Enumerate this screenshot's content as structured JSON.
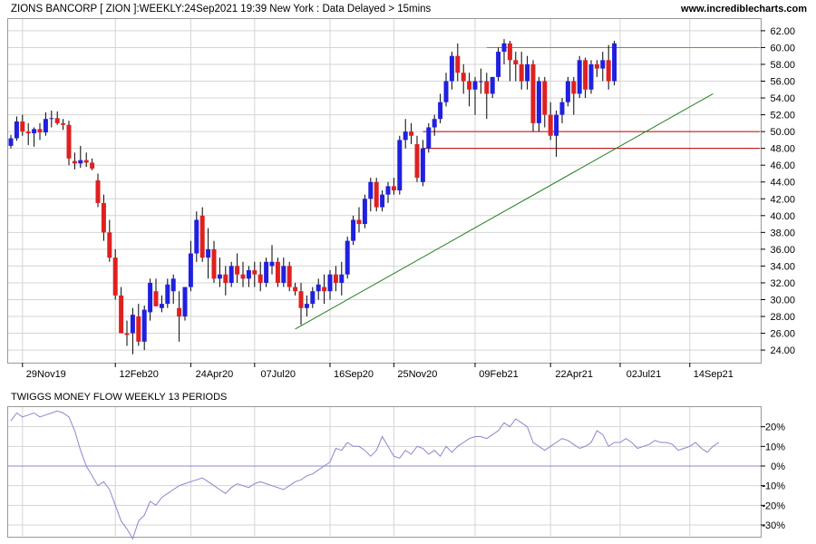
{
  "header": {
    "title": "ZIONS BANCORP [ ZION ]:WEEKLY:24Sep2021 19:39 New York : Data Delayed > 15mins",
    "site": "www.incrediblecharts.com"
  },
  "colors": {
    "up": "#2020e0",
    "down": "#e02020",
    "wick": "#000000",
    "grid": "#d4d4d4",
    "resistance": "#d2691e",
    "support": "#c00000",
    "trendline": "#208020",
    "money_flow": "#8888cc"
  },
  "chart_data": [
    {
      "type": "candlestick",
      "title": "ZIONS BANCORP [ ZION ]:WEEKLY:24Sep2021 19:39 New York : Data Delayed > 15mins",
      "y_ticks": [
        "24.00",
        "26.00",
        "28.00",
        "30.00",
        "32.00",
        "34.00",
        "36.00",
        "38.00",
        "40.00",
        "42.00",
        "44.00",
        "46.00",
        "48.00",
        "50.00",
        "52.00",
        "54.00",
        "56.00",
        "58.00",
        "60.00",
        "62.00"
      ],
      "ylim": [
        22.5,
        63.5
      ],
      "x_tick_labels": [
        "29Nov19",
        "12Feb20",
        "24Apr20",
        "07Jul20",
        "16Sep20",
        "25Nov20",
        "09Feb21",
        "22Apr21",
        "02Jul21",
        "14Sep21"
      ],
      "x_tick_weeks": [
        2,
        18,
        31,
        42,
        55,
        66,
        80,
        93,
        105,
        117
      ],
      "weeks": 122,
      "grid": true,
      "ohlc": [
        [
          48.3,
          49.6,
          48.0,
          49.2
        ],
        [
          49.2,
          51.8,
          48.9,
          51.2
        ],
        [
          51.2,
          52.0,
          49.5,
          50.0
        ],
        [
          50.0,
          51.0,
          48.4,
          49.8
        ],
        [
          49.8,
          50.5,
          48.2,
          50.3
        ],
        [
          50.3,
          51.0,
          49.0,
          49.9
        ],
        [
          49.9,
          52.3,
          49.5,
          51.5
        ],
        [
          51.5,
          52.5,
          50.5,
          51.6
        ],
        [
          51.6,
          52.4,
          50.8,
          51.0
        ],
        [
          51.0,
          51.5,
          50.2,
          50.8
        ],
        [
          50.8,
          51.3,
          46.0,
          46.8
        ],
        [
          46.5,
          47.5,
          45.5,
          46.2
        ],
        [
          46.2,
          48.3,
          45.7,
          46.6
        ],
        [
          46.6,
          47.5,
          45.8,
          46.3
        ],
        [
          46.3,
          46.8,
          45.4,
          45.6
        ],
        [
          44.2,
          45.0,
          41.0,
          41.5
        ],
        [
          41.5,
          42.5,
          37.0,
          38.0
        ],
        [
          38.0,
          39.5,
          34.5,
          35.0
        ],
        [
          35.0,
          36.0,
          30.0,
          30.5
        ],
        [
          30.5,
          31.5,
          26.0,
          26.0
        ],
        [
          26.0,
          27.5,
          24.5,
          25.8
        ],
        [
          26.0,
          29.0,
          23.5,
          28.2
        ],
        [
          28.0,
          29.5,
          24.5,
          25.0
        ],
        [
          25.0,
          29.3,
          24.0,
          28.8
        ],
        [
          28.5,
          32.5,
          27.5,
          32.0
        ],
        [
          31.0,
          32.5,
          29.5,
          29.2
        ],
        [
          29.0,
          30.5,
          28.5,
          29.5
        ],
        [
          29.5,
          32.5,
          29.0,
          31.8
        ],
        [
          31.0,
          33.0,
          29.5,
          32.5
        ],
        [
          29.0,
          31.0,
          25.0,
          28.0
        ],
        [
          28.0,
          31.5,
          27.5,
          31.5
        ],
        [
          31.5,
          37.0,
          31.0,
          35.5
        ],
        [
          35.5,
          40.5,
          34.5,
          39.5
        ],
        [
          40.0,
          41.0,
          34.5,
          35.0
        ],
        [
          35.0,
          38.5,
          32.5,
          36.0
        ],
        [
          36.0,
          37.0,
          32.0,
          32.5
        ],
        [
          32.5,
          35.0,
          31.5,
          33.0
        ],
        [
          33.0,
          34.0,
          30.5,
          32.0
        ],
        [
          32.0,
          34.5,
          31.5,
          34.0
        ],
        [
          34.0,
          35.5,
          32.0,
          33.0
        ],
        [
          33.0,
          34.5,
          31.5,
          32.5
        ],
        [
          32.5,
          34.0,
          31.5,
          33.5
        ],
        [
          33.5,
          34.5,
          31.5,
          33.0
        ],
        [
          33.0,
          34.5,
          31.0,
          32.0
        ],
        [
          32.0,
          35.0,
          31.5,
          34.5
        ],
        [
          34.0,
          36.5,
          33.0,
          34.5
        ],
        [
          34.5,
          35.0,
          31.5,
          32.0
        ],
        [
          32.0,
          35.0,
          31.5,
          34.0
        ],
        [
          34.0,
          34.5,
          31.0,
          31.5
        ],
        [
          31.5,
          32.0,
          30.5,
          31.0
        ],
        [
          31.0,
          32.0,
          27.0,
          29.0
        ],
        [
          29.0,
          30.5,
          28.0,
          29.5
        ],
        [
          29.5,
          31.5,
          29.0,
          31.0
        ],
        [
          31.0,
          32.5,
          30.0,
          31.8
        ],
        [
          31.5,
          33.0,
          29.5,
          31.0
        ],
        [
          31.0,
          33.5,
          30.0,
          33.0
        ],
        [
          33.0,
          34.0,
          31.0,
          32.0
        ],
        [
          32.0,
          34.5,
          30.5,
          33.0
        ],
        [
          33.0,
          37.5,
          32.5,
          37.0
        ],
        [
          37.0,
          40.0,
          36.5,
          39.5
        ],
        [
          39.5,
          41.0,
          38.0,
          39.0
        ],
        [
          39.0,
          42.5,
          38.5,
          42.0
        ],
        [
          42.0,
          44.5,
          40.5,
          44.0
        ],
        [
          44.0,
          44.5,
          40.5,
          41.0
        ],
        [
          41.0,
          43.0,
          40.5,
          42.5
        ],
        [
          42.5,
          44.0,
          41.5,
          43.5
        ],
        [
          43.5,
          44.5,
          42.5,
          43.0
        ],
        [
          43.0,
          49.5,
          42.5,
          49.0
        ],
        [
          49.0,
          51.5,
          48.0,
          50.0
        ],
        [
          50.0,
          51.0,
          48.5,
          49.5
        ],
        [
          48.5,
          49.5,
          44.0,
          44.5
        ],
        [
          44.0,
          49.0,
          43.5,
          48.0
        ],
        [
          48.0,
          51.0,
          47.5,
          50.5
        ],
        [
          50.5,
          52.0,
          49.5,
          51.5
        ],
        [
          51.5,
          54.5,
          51.0,
          53.5
        ],
        [
          53.5,
          57.0,
          53.0,
          56.0
        ],
        [
          56.0,
          59.5,
          55.0,
          59.0
        ],
        [
          59.0,
          60.5,
          56.0,
          57.0
        ],
        [
          57.0,
          58.0,
          54.5,
          56.0
        ],
        [
          56.0,
          57.0,
          53.0,
          55.0
        ],
        [
          55.0,
          56.5,
          52.0,
          56.0
        ],
        [
          56.0,
          57.5,
          54.5,
          56.0
        ],
        [
          56.0,
          57.0,
          51.5,
          54.5
        ],
        [
          54.5,
          56.5,
          54.0,
          56.5
        ],
        [
          56.5,
          60.0,
          56.0,
          59.5
        ],
        [
          59.5,
          61.0,
          58.0,
          60.5
        ],
        [
          60.5,
          60.8,
          56.0,
          58.5
        ],
        [
          58.5,
          59.5,
          56.0,
          58.0
        ],
        [
          58.0,
          59.5,
          55.0,
          56.0
        ],
        [
          56.0,
          59.0,
          55.0,
          58.0
        ],
        [
          58.0,
          58.5,
          50.0,
          51.0
        ],
        [
          51.0,
          56.5,
          50.0,
          56.0
        ],
        [
          56.0,
          56.5,
          50.5,
          52.0
        ],
        [
          52.0,
          53.5,
          49.0,
          49.5
        ],
        [
          49.5,
          52.5,
          47.0,
          52.0
        ],
        [
          52.0,
          54.0,
          51.0,
          53.5
        ],
        [
          53.5,
          56.5,
          53.0,
          56.0
        ],
        [
          56.0,
          56.5,
          52.0,
          54.5
        ],
        [
          54.5,
          59.0,
          54.0,
          58.5
        ],
        [
          58.5,
          58.8,
          54.0,
          55.0
        ],
        [
          55.0,
          58.5,
          54.5,
          58.0
        ],
        [
          58.0,
          58.5,
          56.5,
          57.5
        ],
        [
          57.5,
          59.5,
          56.0,
          58.5
        ],
        [
          58.5,
          60.3,
          55.0,
          56.0
        ],
        [
          56.0,
          60.8,
          55.5,
          60.5
        ]
      ],
      "resistance_level": 60.0,
      "support_levels": [
        50.0,
        48.0
      ],
      "trendline": {
        "from": {
          "week": 49,
          "price": 26.5
        },
        "to": {
          "week": 121,
          "price": 54.5
        }
      }
    },
    {
      "type": "line",
      "title": "TWIGGS MONEY FLOW WEEKLY 13 PERIODS",
      "y_ticks": [
        "20%",
        "10%",
        "0%",
        "-10%",
        "-20%",
        "-30%"
      ],
      "ylim": [
        -36,
        30
      ],
      "zero_line": 0,
      "series": [
        {
          "values": [
            23,
            27,
            25,
            26,
            27,
            25,
            26,
            27,
            28,
            27,
            25,
            18,
            8,
            0,
            -5,
            -10,
            -8,
            -12,
            -20,
            -28,
            -32,
            -37,
            -28,
            -25,
            -18,
            -20,
            -16,
            -14,
            -12,
            -10,
            -9,
            -8,
            -7,
            -6,
            -8,
            -10,
            -12,
            -14,
            -11,
            -9,
            -10,
            -11,
            -9,
            -8,
            -9,
            -10,
            -11,
            -12,
            -10,
            -8,
            -7,
            -5,
            -4,
            -2,
            0,
            2,
            9,
            8,
            12,
            10,
            10,
            8,
            5,
            8,
            15,
            10,
            5,
            4,
            8,
            6,
            10,
            9,
            6,
            8,
            5,
            10,
            7,
            10,
            12,
            14,
            15,
            15,
            14,
            16,
            18,
            22,
            20,
            24,
            22,
            20,
            12,
            10,
            8,
            10,
            12,
            14,
            13,
            11,
            9,
            10,
            12,
            18,
            16,
            10,
            12,
            12,
            14,
            12,
            9,
            10,
            11,
            13,
            12,
            12,
            11,
            8,
            9,
            10,
            12,
            9,
            7,
            10,
            12
          ]
        }
      ]
    }
  ],
  "lower_panel": {
    "title": "TWIGGS MONEY FLOW WEEKLY 13 PERIODS"
  }
}
